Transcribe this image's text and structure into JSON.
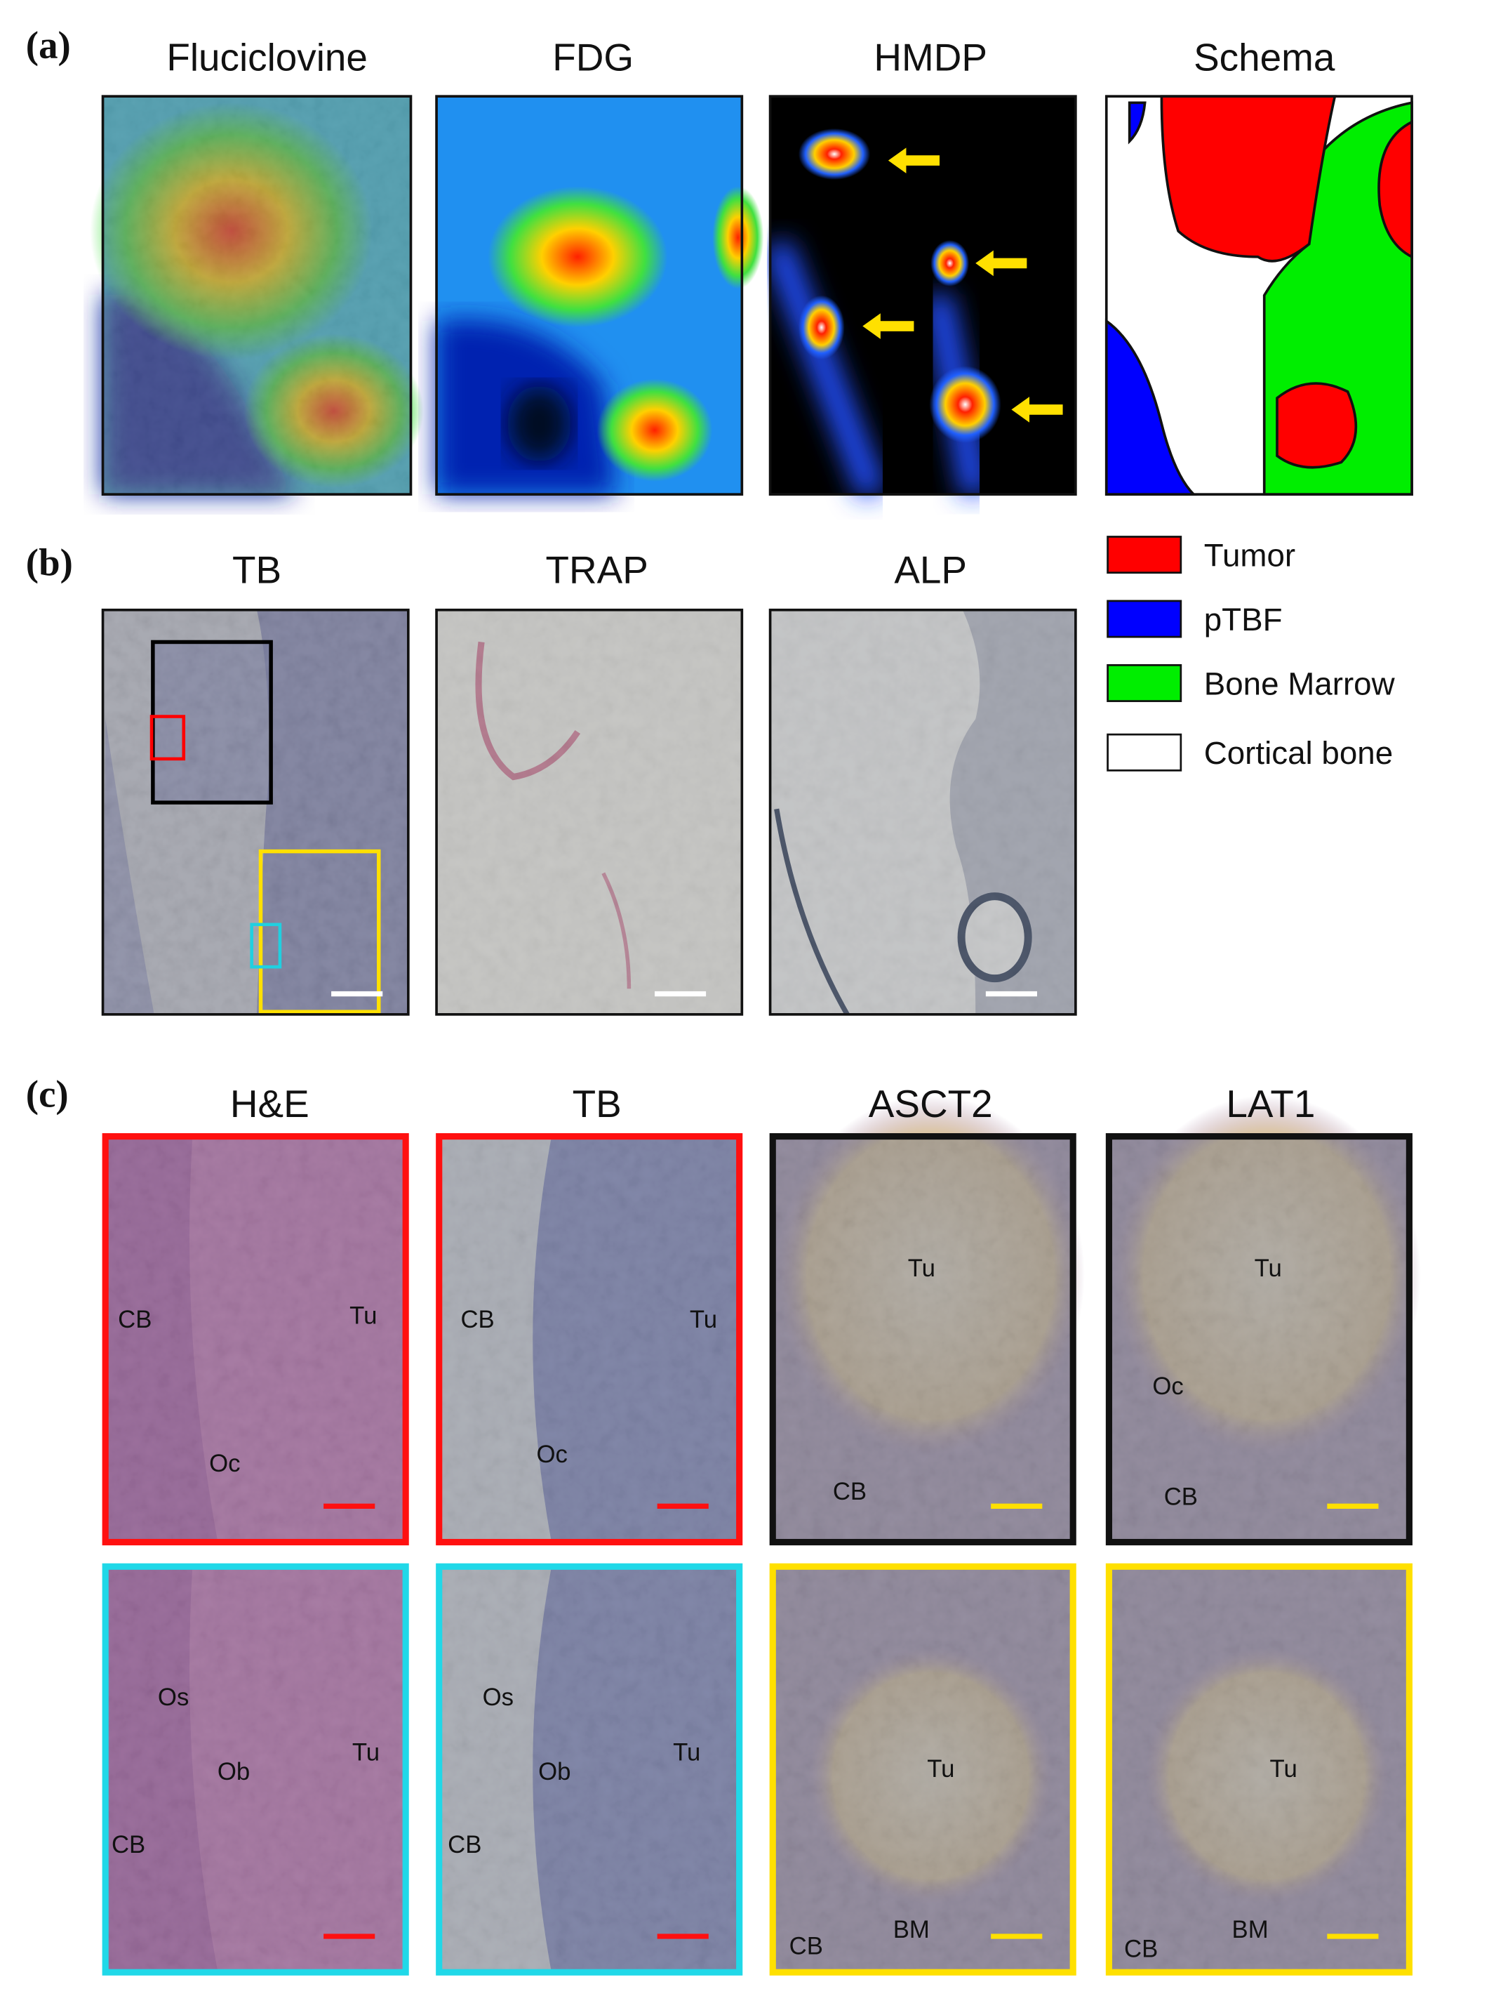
{
  "panel_a": {
    "label": "(a)",
    "titles": [
      "Fluciclovine",
      "FDG",
      "HMDP",
      "Schema"
    ]
  },
  "panel_b": {
    "label": "(b)",
    "titles": [
      "TB",
      "TRAP",
      "ALP"
    ],
    "legend": [
      {
        "label": "Tumor",
        "color": "#ff0000"
      },
      {
        "label": "pTBF",
        "color": "#0000ff"
      },
      {
        "label": "Bone Marrow",
        "color": "#00ee00"
      },
      {
        "label": "Cortical bone",
        "color": "#ffffff"
      }
    ]
  },
  "panel_c": {
    "label": "(c)",
    "titles": [
      "H&E",
      "TB",
      "ASCT2",
      "LAT1"
    ],
    "rows": [
      {
        "images": [
          {
            "annotations": [
              "CB",
              "Tu",
              "Oc"
            ]
          },
          {
            "annotations": [
              "CB",
              "Tu",
              "Oc"
            ]
          },
          {
            "annotations": [
              "Tu",
              "CB"
            ]
          },
          {
            "annotations": [
              "Tu",
              "Oc",
              "CB"
            ]
          }
        ]
      },
      {
        "images": [
          {
            "annotations": [
              "Os",
              "Ob",
              "Tu",
              "CB"
            ]
          },
          {
            "annotations": [
              "Os",
              "Ob",
              "Tu",
              "CB"
            ]
          },
          {
            "annotations": [
              "Tu",
              "CB",
              "BM"
            ]
          },
          {
            "annotations": [
              "Tu",
              "CB",
              "BM"
            ]
          }
        ]
      }
    ]
  }
}
